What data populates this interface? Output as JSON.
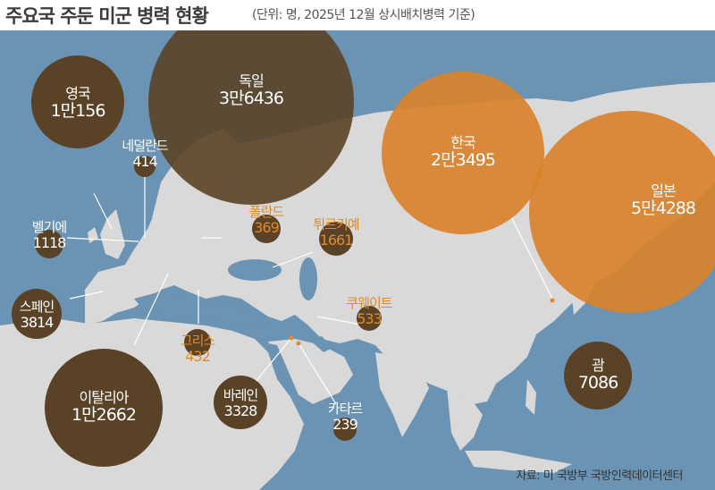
{
  "title": "주요국 주둔 미군 병력 현황",
  "subtitle": "(단위: 명, 2025년 12월 상시배치병력 기준)",
  "source": "자료: 미 국방부 국방인력데이터센터",
  "colors": {
    "sea": "#6b93b3",
    "land": "#d9d9d9",
    "dark_bubble": "#5a4226",
    "orange": "#d9822b"
  },
  "countries": {
    "germany": {
      "name": "독일",
      "value": "3만6436"
    },
    "uk": {
      "name": "영국",
      "value": "1만156"
    },
    "netherlands": {
      "name": "네덜란드",
      "value": "414"
    },
    "belgium": {
      "name": "벨기에",
      "value": "1118"
    },
    "poland": {
      "name": "폴란드",
      "value": "369"
    },
    "turkiye": {
      "name": "튀르키예",
      "value": "1661"
    },
    "spain": {
      "name": "스페인",
      "value": "3814"
    },
    "greece": {
      "name": "그리스",
      "value": "432"
    },
    "kuwait": {
      "name": "쿠웨이트",
      "value": "533"
    },
    "italy": {
      "name": "이탈리아",
      "value": "1만2662"
    },
    "bahrain": {
      "name": "바레인",
      "value": "3328"
    },
    "qatar": {
      "name": "카타르",
      "value": "239"
    },
    "korea": {
      "name": "한국",
      "value": "2만3495"
    },
    "japan": {
      "name": "일본",
      "value": "5만4288"
    },
    "guam": {
      "name": "괌",
      "value": "7086"
    }
  }
}
